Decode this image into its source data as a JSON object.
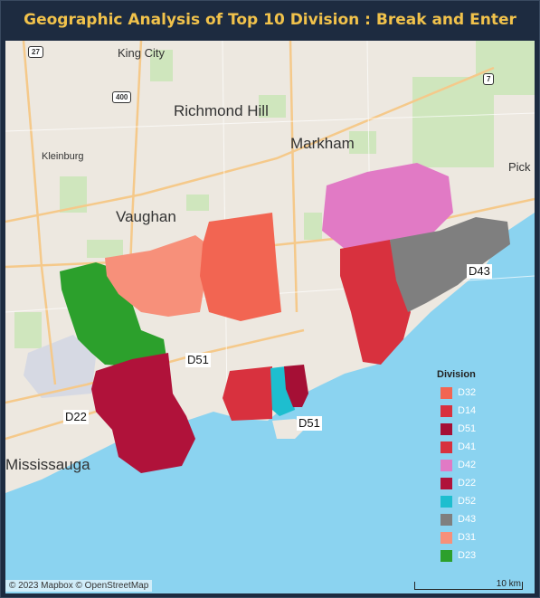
{
  "title": "Geographic Analysis of Top 10 Division : Break and Enter",
  "map": {
    "places": [
      {
        "name": "King City"
      },
      {
        "name": "Richmond Hill"
      },
      {
        "name": "Markham"
      },
      {
        "name": "Kleinburg"
      },
      {
        "name": "Vaughan"
      },
      {
        "name": "Mississauga"
      },
      {
        "name": "Pick"
      }
    ],
    "highway_shields": [
      "27",
      "400",
      "7"
    ],
    "division_labels": [
      "D43",
      "D51",
      "D51",
      "D22"
    ],
    "attribution": "© 2023 Mapbox © OpenStreetMap",
    "scale_label": "10 km"
  },
  "legend": {
    "title": "Division",
    "items": [
      {
        "label": "D32",
        "color": "#f26552"
      },
      {
        "label": "D14",
        "color": "#d8313e"
      },
      {
        "label": "D51",
        "color": "#a50f35"
      },
      {
        "label": "D41",
        "color": "#d8313e"
      },
      {
        "label": "D42",
        "color": "#e17ac5"
      },
      {
        "label": "D22",
        "color": "#b0123a"
      },
      {
        "label": "D52",
        "color": "#1ebecf"
      },
      {
        "label": "D43",
        "color": "#7f7f7f"
      },
      {
        "label": "D31",
        "color": "#f7907a"
      },
      {
        "label": "D23",
        "color": "#2ca02c"
      }
    ]
  },
  "colors": {
    "water": "#8bd3f0",
    "land": "#ede8e0",
    "park": "#c9e3b3",
    "road": "#f5c98a",
    "title": "#f1c24b"
  }
}
